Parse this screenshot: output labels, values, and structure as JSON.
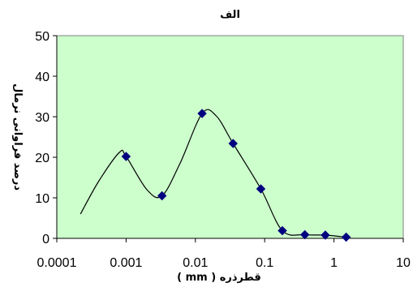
{
  "chart_data": {
    "type": "scatter",
    "title": "الف",
    "xlabel": "قطرذره ( mm )",
    "ylabel": "درصد فراوانی نرمال",
    "x_scale": "log",
    "xlim": [
      0.0001,
      10
    ],
    "ylim": [
      0,
      50
    ],
    "x_ticks": [
      "0.0001",
      "0.001",
      "0.01",
      "0.1",
      "1",
      "10"
    ],
    "y_ticks": [
      "0",
      "10",
      "20",
      "30",
      "40",
      "50"
    ],
    "plot_background": "#ccffcc",
    "marker_color": "#000080",
    "line_color": "#000000",
    "grid": false,
    "legend": "none",
    "series": [
      {
        "points": [
          {
            "x": 0.001,
            "y": 20.2
          },
          {
            "x": 0.0033,
            "y": 10.5
          },
          {
            "x": 0.0125,
            "y": 30.8
          },
          {
            "x": 0.035,
            "y": 23.4
          },
          {
            "x": 0.088,
            "y": 12.2
          },
          {
            "x": 0.18,
            "y": 1.9
          },
          {
            "x": 0.38,
            "y": 0.9
          },
          {
            "x": 0.75,
            "y": 0.8
          },
          {
            "x": 1.5,
            "y": 0.3
          }
        ],
        "curve": [
          {
            "x": 0.00022,
            "y": 6
          },
          {
            "x": 0.0004,
            "y": 14
          },
          {
            "x": 0.0008,
            "y": 21.2
          },
          {
            "x": 0.001,
            "y": 20.2
          },
          {
            "x": 0.002,
            "y": 12
          },
          {
            "x": 0.0033,
            "y": 10.5
          },
          {
            "x": 0.006,
            "y": 18.5
          },
          {
            "x": 0.0125,
            "y": 30.8
          },
          {
            "x": 0.02,
            "y": 30.2
          },
          {
            "x": 0.035,
            "y": 23.4
          },
          {
            "x": 0.088,
            "y": 12.2
          },
          {
            "x": 0.18,
            "y": 1.9
          },
          {
            "x": 0.38,
            "y": 0.9
          },
          {
            "x": 0.75,
            "y": 0.8
          },
          {
            "x": 1.5,
            "y": 0.3
          }
        ]
      }
    ]
  }
}
